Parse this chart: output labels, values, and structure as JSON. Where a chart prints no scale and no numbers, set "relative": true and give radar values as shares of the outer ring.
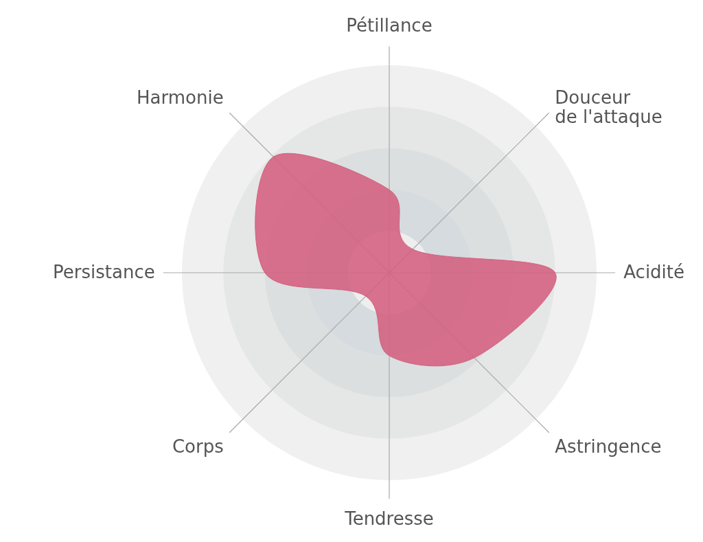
{
  "chart_data": {
    "type": "radar",
    "relative": true,
    "grid": true,
    "categories": [
      "Pétillance",
      "Douceur de l'attaque",
      "Acidité",
      "Astringence",
      "Tendresse",
      "Corps",
      "Persistance",
      "Harmonie"
    ],
    "series": [
      {
        "color": "#d4607f",
        "values": [
          0.4,
          0.16,
          0.8,
          0.58,
          0.4,
          0.16,
          0.6,
          0.79
        ]
      }
    ]
  }
}
